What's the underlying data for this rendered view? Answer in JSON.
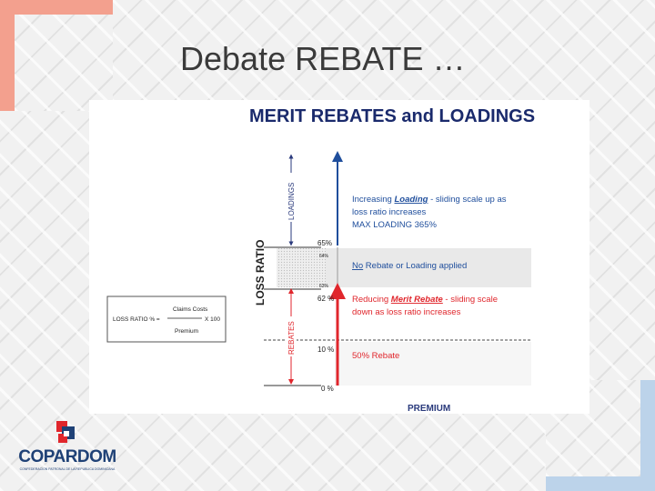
{
  "slide": {
    "title": "Debate REBATE …"
  },
  "diagram": {
    "heading": "MERIT REBATES and LOADINGS",
    "axis_label": "LOSS RATIO",
    "loadings_label": "LOADINGS",
    "rebates_label": "REBATES",
    "premium_label": "PREMIUM",
    "levels": {
      "l65": "65%",
      "l64": "64%",
      "l63": "63%",
      "l62": "62 %",
      "l10": "10 %",
      "l0": "0 %"
    },
    "loading_text": {
      "line1_prefix": "Increasing ",
      "line1_emph": "Loading",
      "line1_suffix": " - sliding scale up as",
      "line2": "loss ratio increases",
      "line3": "MAX LOADING 365%"
    },
    "neutral_text": {
      "emph": "No",
      "rest": " Rebate or Loading applied"
    },
    "rebate_text": {
      "line1_prefix": "Reducing ",
      "line1_emph": "Merit Rebate",
      "line1_suffix": " - sliding scale",
      "line2": "down as loss ratio increases"
    },
    "fifty_text": "50% Rebate",
    "formula": {
      "lhs": "LOSS RATIO % =",
      "numerator": "Claims Costs",
      "denominator": "Premium",
      "multiplier": "X 100"
    },
    "colors": {
      "heading": "#1a2a6c",
      "blue": "#1f4e9c",
      "red": "#e0262c",
      "navy": "#2a3a7c"
    }
  },
  "logo": {
    "name": "COPARDOM",
    "subtitle": "CONFEDERACION PATRONAL DE LA REPUBLICA DOMINICANA"
  }
}
